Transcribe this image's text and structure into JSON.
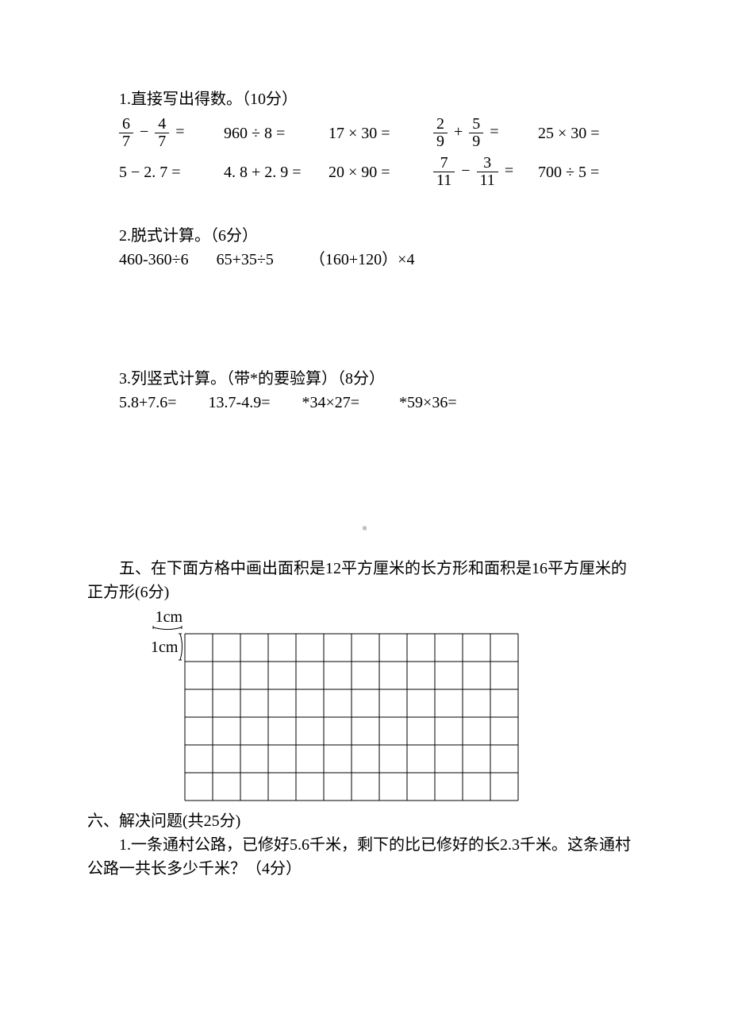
{
  "s1": {
    "title": "1.直接写出得数。（10分）"
  },
  "row1": {
    "c1": {
      "a_num": "6",
      "a_den": "7",
      "op": "−",
      "b_num": "4",
      "b_den": "7",
      "eq": "="
    },
    "c2": "960 ÷ 8 =",
    "c3": "17 × 30 =",
    "c4": {
      "a_num": "2",
      "a_den": "9",
      "op": "+",
      "b_num": "5",
      "b_den": "9",
      "eq": "="
    },
    "c5": "25 × 30 ="
  },
  "row2": {
    "c1": "5 − 2. 7 =",
    "c2": "4. 8 + 2. 9 =",
    "c3": "20 × 90 =",
    "c4": {
      "a_num": "7",
      "a_den": "11",
      "op": "−",
      "b_num": "3",
      "b_den": "11",
      "eq": "="
    },
    "c5": "700 ÷ 5 ="
  },
  "s2": {
    "title": "2.脱式计算。（6分）",
    "items": "460-360÷6       65+35÷5         （160+120）×4"
  },
  "s3": {
    "title": "3.列竖式计算。（带*的要验算）（8分）",
    "items": "5.8+7.6=        13.7-4.9=        *34×27=          *59×36="
  },
  "dot": "■",
  "s5": {
    "line1": "五、在下面方格中画出面积是12平方厘米的长方形和面积是16平方厘米的",
    "line2": "正方形(6分)"
  },
  "grid": {
    "label_top": "1cm",
    "label_left": "1cm",
    "cols": 12,
    "rows": 6,
    "cell": 35,
    "stroke": "#000000",
    "stroke_width": 1
  },
  "s6": {
    "title": "六、解决问题(共25分)",
    "q1a": "1.一条通村公路，已修好5.6千米，剩下的比已修好的长2.3千米。这条通村",
    "q1b": "公路一共长多少千米？（4分）"
  }
}
